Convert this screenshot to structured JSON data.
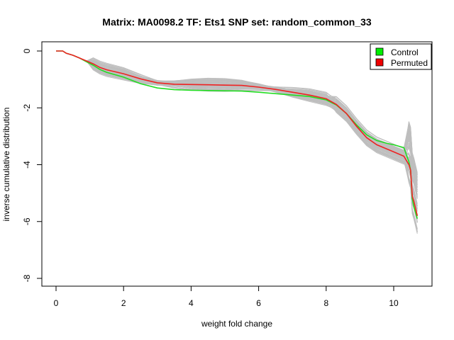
{
  "chart_data": {
    "type": "line",
    "title": "Matrix: MA0098.2 TF: Ets1 SNP set: random_common_33",
    "xlabel": "weight fold change",
    "ylabel": "inverse cumulative distribution",
    "xlim": [
      0,
      10.7
    ],
    "ylim": [
      -8,
      0
    ],
    "x_ticks": [
      0,
      2,
      4,
      6,
      8,
      10
    ],
    "y_ticks": [
      0,
      -2,
      -4,
      -6,
      -8
    ],
    "grid": false,
    "legend": {
      "position": "top-right",
      "entries": [
        {
          "label": "Control",
          "color": "#00ee00"
        },
        {
          "label": "Permuted",
          "color": "#ee0000"
        }
      ]
    },
    "background_color": "#bebebe",
    "series": [
      {
        "name": "Control",
        "color": "#22dd22",
        "x": [
          0,
          0.2,
          0.3,
          0.5,
          0.7,
          0.9,
          1.1,
          1.3,
          1.5,
          2,
          2.5,
          3,
          3.5,
          4,
          4.5,
          5,
          5.5,
          6,
          6.5,
          7,
          7.5,
          8,
          8.3,
          8.6,
          8.9,
          9.2,
          9.5,
          9.8,
          10,
          10.3,
          10.45,
          10.5,
          10.55,
          10.6,
          10.7
        ],
        "y": [
          0,
          0,
          -0.08,
          -0.15,
          -0.25,
          -0.38,
          -0.5,
          -0.65,
          -0.75,
          -0.92,
          -1.15,
          -1.3,
          -1.36,
          -1.38,
          -1.39,
          -1.4,
          -1.41,
          -1.45,
          -1.5,
          -1.55,
          -1.6,
          -1.72,
          -1.9,
          -2.2,
          -2.6,
          -2.95,
          -3.15,
          -3.25,
          -3.3,
          -3.4,
          -3.9,
          -4.2,
          -5.2,
          -5.5,
          -5.9
        ]
      },
      {
        "name": "Permuted",
        "color": "#ee2222",
        "x": [
          0,
          0.2,
          0.3,
          0.5,
          0.7,
          0.9,
          1.1,
          1.3,
          1.5,
          2,
          2.5,
          3,
          3.5,
          4,
          4.5,
          5,
          5.5,
          6,
          6.5,
          7,
          7.5,
          8,
          8.3,
          8.6,
          8.9,
          9.2,
          9.5,
          9.8,
          10,
          10.3,
          10.45,
          10.5,
          10.55,
          10.6,
          10.7
        ],
        "y": [
          0,
          0,
          -0.08,
          -0.15,
          -0.25,
          -0.35,
          -0.45,
          -0.58,
          -0.66,
          -0.8,
          -0.98,
          -1.12,
          -1.17,
          -1.18,
          -1.19,
          -1.2,
          -1.21,
          -1.27,
          -1.35,
          -1.45,
          -1.55,
          -1.68,
          -1.88,
          -2.2,
          -2.65,
          -3.05,
          -3.3,
          -3.45,
          -3.55,
          -3.7,
          -4.0,
          -4.2,
          -5.1,
          -5.3,
          -5.8
        ]
      }
    ]
  }
}
